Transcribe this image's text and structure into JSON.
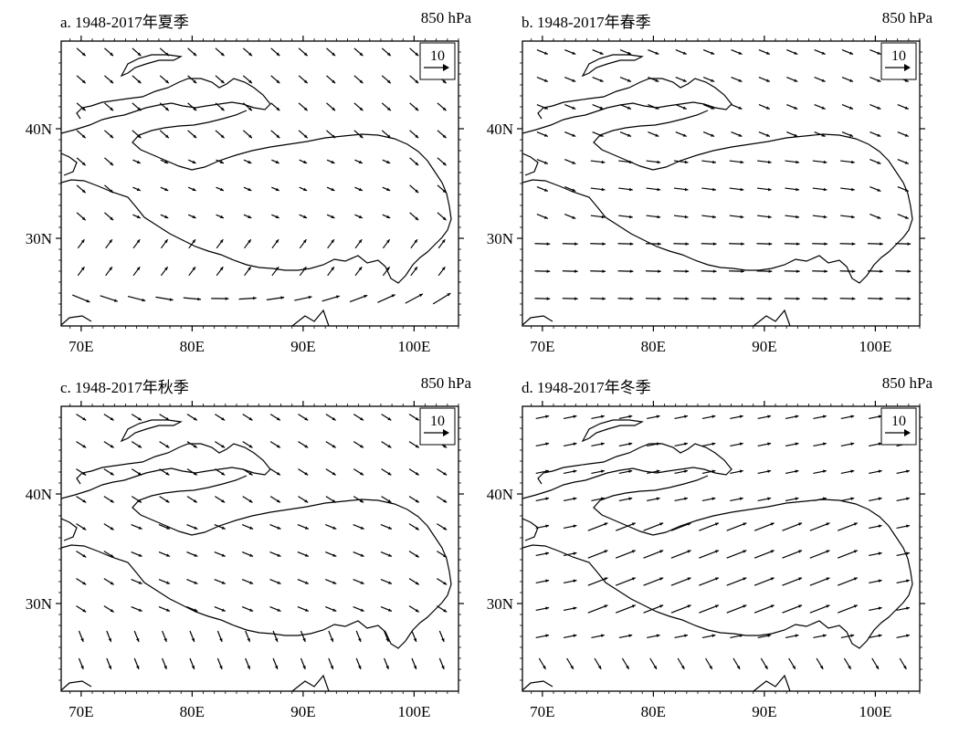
{
  "figure": {
    "panels": [
      {
        "title": "a. 1948-2017年夏季",
        "level": "850 hPa",
        "season": "summer"
      },
      {
        "title": "b. 1948-2017年春季",
        "level": "850 hPa",
        "season": "spring"
      },
      {
        "title": "c. 1948-2017年秋季",
        "level": "850 hPa",
        "season": "autumn"
      },
      {
        "title": "d. 1948-2017年冬季",
        "level": "850 hPa",
        "season": "winter"
      }
    ],
    "x_ticks": [
      "70E",
      "80E",
      "90E",
      "100E"
    ],
    "y_ticks": [
      "40N",
      "30N"
    ],
    "reference_vector": "10",
    "colors": {
      "line": "#000000",
      "background": "#ffffff"
    }
  }
}
